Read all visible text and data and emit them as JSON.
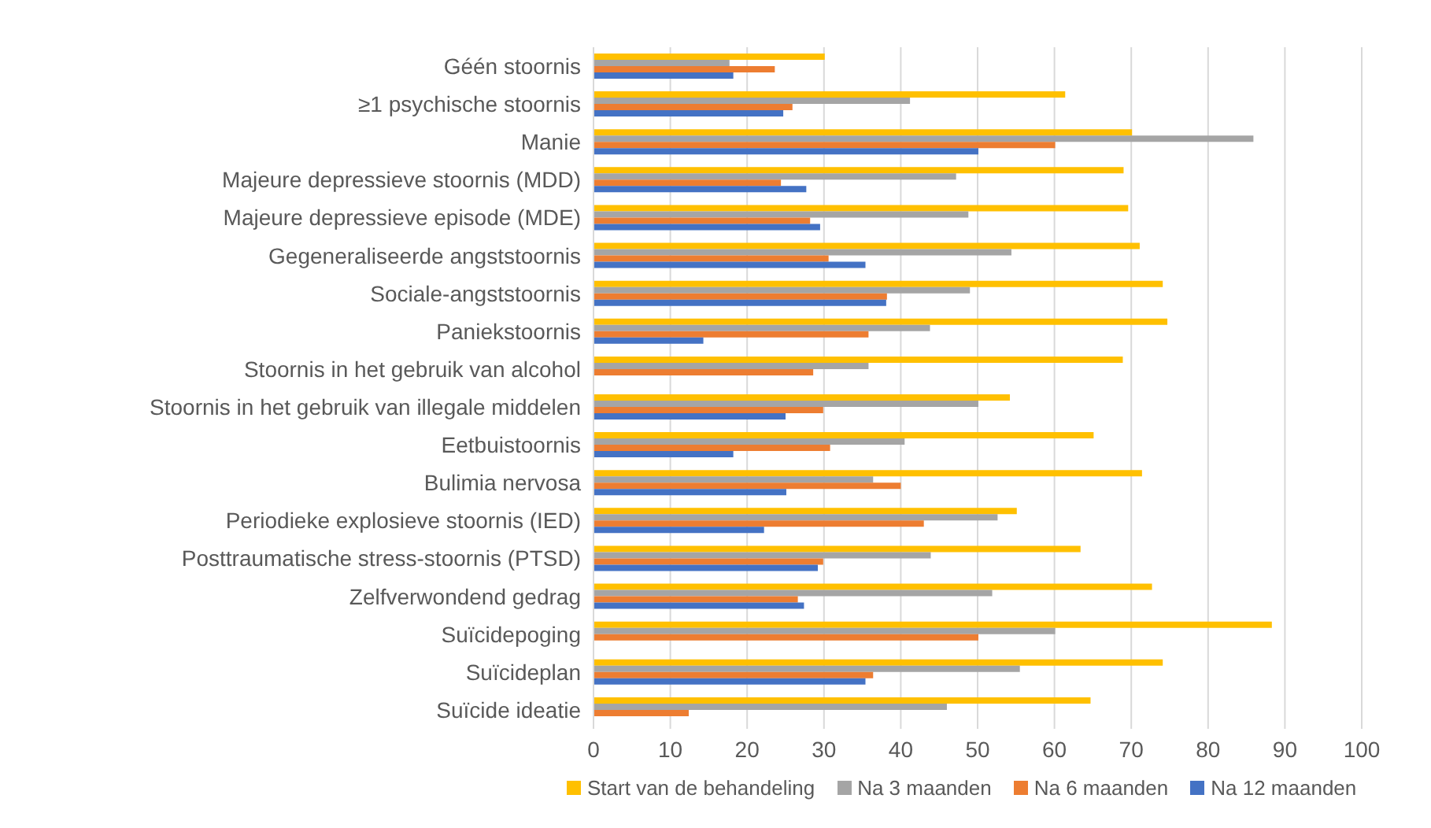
{
  "chart_data": {
    "type": "bar",
    "orientation": "horizontal",
    "categories": [
      "Géén stoornis",
      "≥1 psychische stoornis",
      "Manie",
      "Majeure depressieve stoornis (MDD)",
      "Majeure depressieve episode (MDE)",
      "Gegeneraliseerde angststoornis",
      "Sociale-angststoornis",
      "Paniekstoornis",
      "Stoornis in het gebruik van alcohol",
      "Stoornis in het gebruik van illegale middelen",
      "Eetbuistoornis",
      "Bulimia nervosa",
      "Periodieke explosieve stoornis (IED)",
      "Posttraumatische stress-stoornis (PTSD)",
      "Zelfverwondend gedrag",
      "Suïcidepoging",
      "Suïcideplan",
      "Suïcide ideatie"
    ],
    "series": [
      {
        "name": "Start van de behandeling",
        "color": "#ffc000",
        "values": [
          30.1,
          61.4,
          70.1,
          69.0,
          69.6,
          71.1,
          74.1,
          74.7,
          68.9,
          54.2,
          65.1,
          71.4,
          55.1,
          63.4,
          72.7,
          88.3,
          74.1,
          64.7
        ]
      },
      {
        "name": "Na 3 maanden",
        "color": "#a5a5a5",
        "values": [
          17.7,
          41.2,
          85.9,
          47.2,
          48.8,
          54.4,
          49.0,
          43.8,
          35.8,
          50.1,
          40.5,
          36.4,
          52.6,
          43.9,
          51.9,
          60.1,
          55.5,
          46.0
        ]
      },
      {
        "name": "Na 6 maanden",
        "color": "#ed7d31",
        "values": [
          23.6,
          25.9,
          60.1,
          24.4,
          28.2,
          30.6,
          38.2,
          35.8,
          28.6,
          29.9,
          30.8,
          40.0,
          43.0,
          29.9,
          26.6,
          50.1,
          36.4,
          12.4
        ]
      },
      {
        "name": "Na 12 maanden",
        "color": "#4472c4",
        "values": [
          18.2,
          24.7,
          50.1,
          27.7,
          29.5,
          35.4,
          38.1,
          14.3,
          null,
          25.0,
          18.2,
          25.1,
          22.2,
          29.2,
          27.4,
          null,
          35.4,
          null
        ]
      }
    ],
    "xlim": [
      0,
      100
    ],
    "xticks": [
      0,
      10,
      20,
      30,
      40,
      50,
      60,
      70,
      80,
      90,
      100
    ],
    "grid": "x",
    "legend": "bottom left"
  }
}
